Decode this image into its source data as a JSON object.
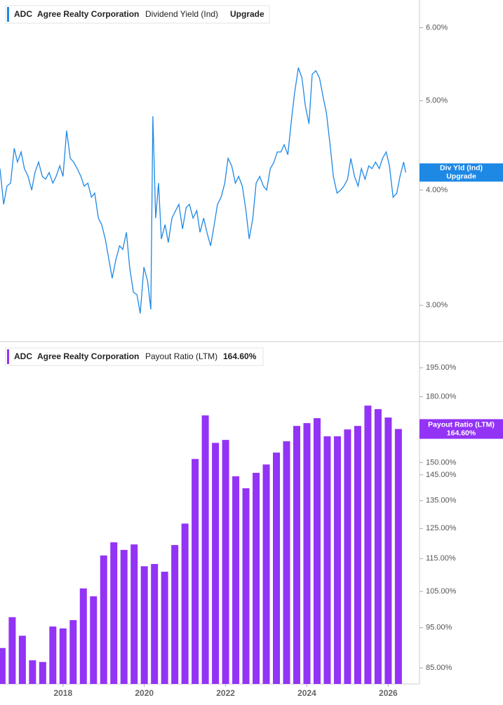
{
  "chart_data": [
    {
      "type": "line",
      "ticker": "ADC",
      "company": "Agree Realty Corporation",
      "status": "Upgrade",
      "badge_label": "Div Yld (Ind)",
      "yscale": "log",
      "ylim": [
        2.74,
        6.43
      ],
      "yticks": [
        {
          "value": 3,
          "label": "3.00%"
        },
        {
          "value": 4,
          "label": "4.00%"
        },
        {
          "value": 5,
          "label": "5.00%"
        },
        {
          "value": 6,
          "label": "6.00%"
        }
      ],
      "xlim": [
        2016.45,
        2026.77
      ],
      "series": [
        {
          "name": "Dividend Yield (Ind)",
          "color": "#1e88e5",
          "x": [
            2016.45,
            2016.54,
            2016.62,
            2016.71,
            2016.8,
            2016.88,
            2016.97,
            2017.05,
            2017.14,
            2017.23,
            2017.31,
            2017.4,
            2017.49,
            2017.57,
            2017.66,
            2017.75,
            2017.83,
            2017.92,
            2018.0,
            2018.09,
            2018.18,
            2018.26,
            2018.35,
            2018.44,
            2018.52,
            2018.61,
            2018.7,
            2018.78,
            2018.87,
            2018.95,
            2019.04,
            2019.13,
            2019.21,
            2019.3,
            2019.39,
            2019.47,
            2019.56,
            2019.64,
            2019.73,
            2019.82,
            2019.9,
            2019.99,
            2020.08,
            2020.16,
            2020.21,
            2020.28,
            2020.35,
            2020.42,
            2020.51,
            2020.59,
            2020.68,
            2020.77,
            2020.85,
            2020.94,
            2021.03,
            2021.11,
            2021.2,
            2021.29,
            2021.37,
            2021.46,
            2021.54,
            2021.63,
            2021.72,
            2021.8,
            2021.89,
            2021.98,
            2022.06,
            2022.15,
            2022.24,
            2022.32,
            2022.41,
            2022.5,
            2022.58,
            2022.67,
            2022.75,
            2022.84,
            2022.93,
            2023.01,
            2023.1,
            2023.19,
            2023.27,
            2023.36,
            2023.44,
            2023.53,
            2023.62,
            2023.7,
            2023.79,
            2023.88,
            2023.96,
            2024.05,
            2024.13,
            2024.22,
            2024.31,
            2024.39,
            2024.48,
            2024.57,
            2024.65,
            2024.74,
            2024.83,
            2024.91,
            2025.0,
            2025.08,
            2025.17,
            2025.26,
            2025.34,
            2025.43,
            2025.52,
            2025.6,
            2025.69,
            2025.78,
            2025.86,
            2025.95,
            2026.03,
            2026.12,
            2026.21,
            2026.29,
            2026.38,
            2026.43
          ],
          "values": [
            4.22,
            3.86,
            4.04,
            4.07,
            4.44,
            4.29,
            4.4,
            4.22,
            4.14,
            4.0,
            4.18,
            4.29,
            4.14,
            4.11,
            4.18,
            4.07,
            4.14,
            4.25,
            4.14,
            4.64,
            4.33,
            4.29,
            4.22,
            4.14,
            4.04,
            4.07,
            3.93,
            3.97,
            3.73,
            3.67,
            3.54,
            3.36,
            3.21,
            3.36,
            3.48,
            3.45,
            3.6,
            3.3,
            3.1,
            3.08,
            2.94,
            3.3,
            3.19,
            2.97,
            4.81,
            3.73,
            4.07,
            3.54,
            3.67,
            3.51,
            3.73,
            3.8,
            3.86,
            3.63,
            3.83,
            3.86,
            3.73,
            3.8,
            3.6,
            3.73,
            3.6,
            3.48,
            3.67,
            3.86,
            3.93,
            4.07,
            4.33,
            4.25,
            4.07,
            4.14,
            4.04,
            3.8,
            3.54,
            3.73,
            4.07,
            4.14,
            4.04,
            4.0,
            4.22,
            4.29,
            4.4,
            4.4,
            4.48,
            4.37,
            4.77,
            5.11,
            5.43,
            5.29,
            4.94,
            4.72,
            5.34,
            5.39,
            5.29,
            5.07,
            4.85,
            4.48,
            4.14,
            3.97,
            4.0,
            4.04,
            4.11,
            4.33,
            4.14,
            4.04,
            4.22,
            4.11,
            4.25,
            4.22,
            4.29,
            4.22,
            4.33,
            4.4,
            4.25,
            3.93,
            3.97,
            4.14,
            4.29,
            4.18
          ]
        }
      ]
    },
    {
      "type": "bar",
      "ticker": "ADC",
      "company": "Agree Realty Corporation",
      "last_value_label": "164.60%",
      "yscale": "log",
      "ylim": [
        81.3,
        209.6
      ],
      "yticks": [
        {
          "value": 85,
          "label": "85.00%"
        },
        {
          "value": 95,
          "label": "95.00%"
        },
        {
          "value": 105,
          "label": "105.00%"
        },
        {
          "value": 115,
          "label": "115.00%"
        },
        {
          "value": 125,
          "label": "125.00%"
        },
        {
          "value": 135,
          "label": "135.00%"
        },
        {
          "value": 145,
          "label": "145.00%"
        },
        {
          "value": 150,
          "label": "150.00%"
        },
        {
          "value": 180,
          "label": "180.00%"
        },
        {
          "value": 195,
          "label": "195.00%"
        }
      ],
      "xlim": [
        2016.45,
        2026.77
      ],
      "xticks": [
        2018,
        2020,
        2022,
        2024,
        2026
      ],
      "series": [
        {
          "name": "Payout Ratio (LTM)",
          "color": "#9333f5",
          "x": [
            2016.5,
            2016.75,
            2017,
            2017.25,
            2017.5,
            2017.75,
            2018,
            2018.25,
            2018.5,
            2018.75,
            2019,
            2019.25,
            2019.5,
            2019.75,
            2020,
            2020.25,
            2020.5,
            2020.75,
            2021,
            2021.25,
            2021.5,
            2021.75,
            2022,
            2022.25,
            2022.5,
            2022.75,
            2023,
            2023.25,
            2023.5,
            2023.75,
            2024,
            2024.25,
            2024.5,
            2024.75,
            2025,
            2025.25,
            2025.5,
            2025.75,
            2026,
            2026.25
          ],
          "values": [
            89.8,
            97.8,
            92.9,
            86.8,
            86.4,
            95.3,
            94.8,
            97.0,
            105.9,
            103.6,
            116.0,
            120.3,
            117.8,
            119.6,
            112.6,
            113.3,
            110.9,
            119.4,
            126.7,
            151.5,
            170.9,
            158.4,
            159.7,
            144.4,
            139.7,
            145.8,
            149.2,
            154.2,
            159.1,
            166.0,
            167.3,
            169.6,
            161.3,
            161.3,
            164.4,
            166.0,
            175.6,
            173.9,
            169.9,
            164.6
          ]
        }
      ]
    }
  ]
}
